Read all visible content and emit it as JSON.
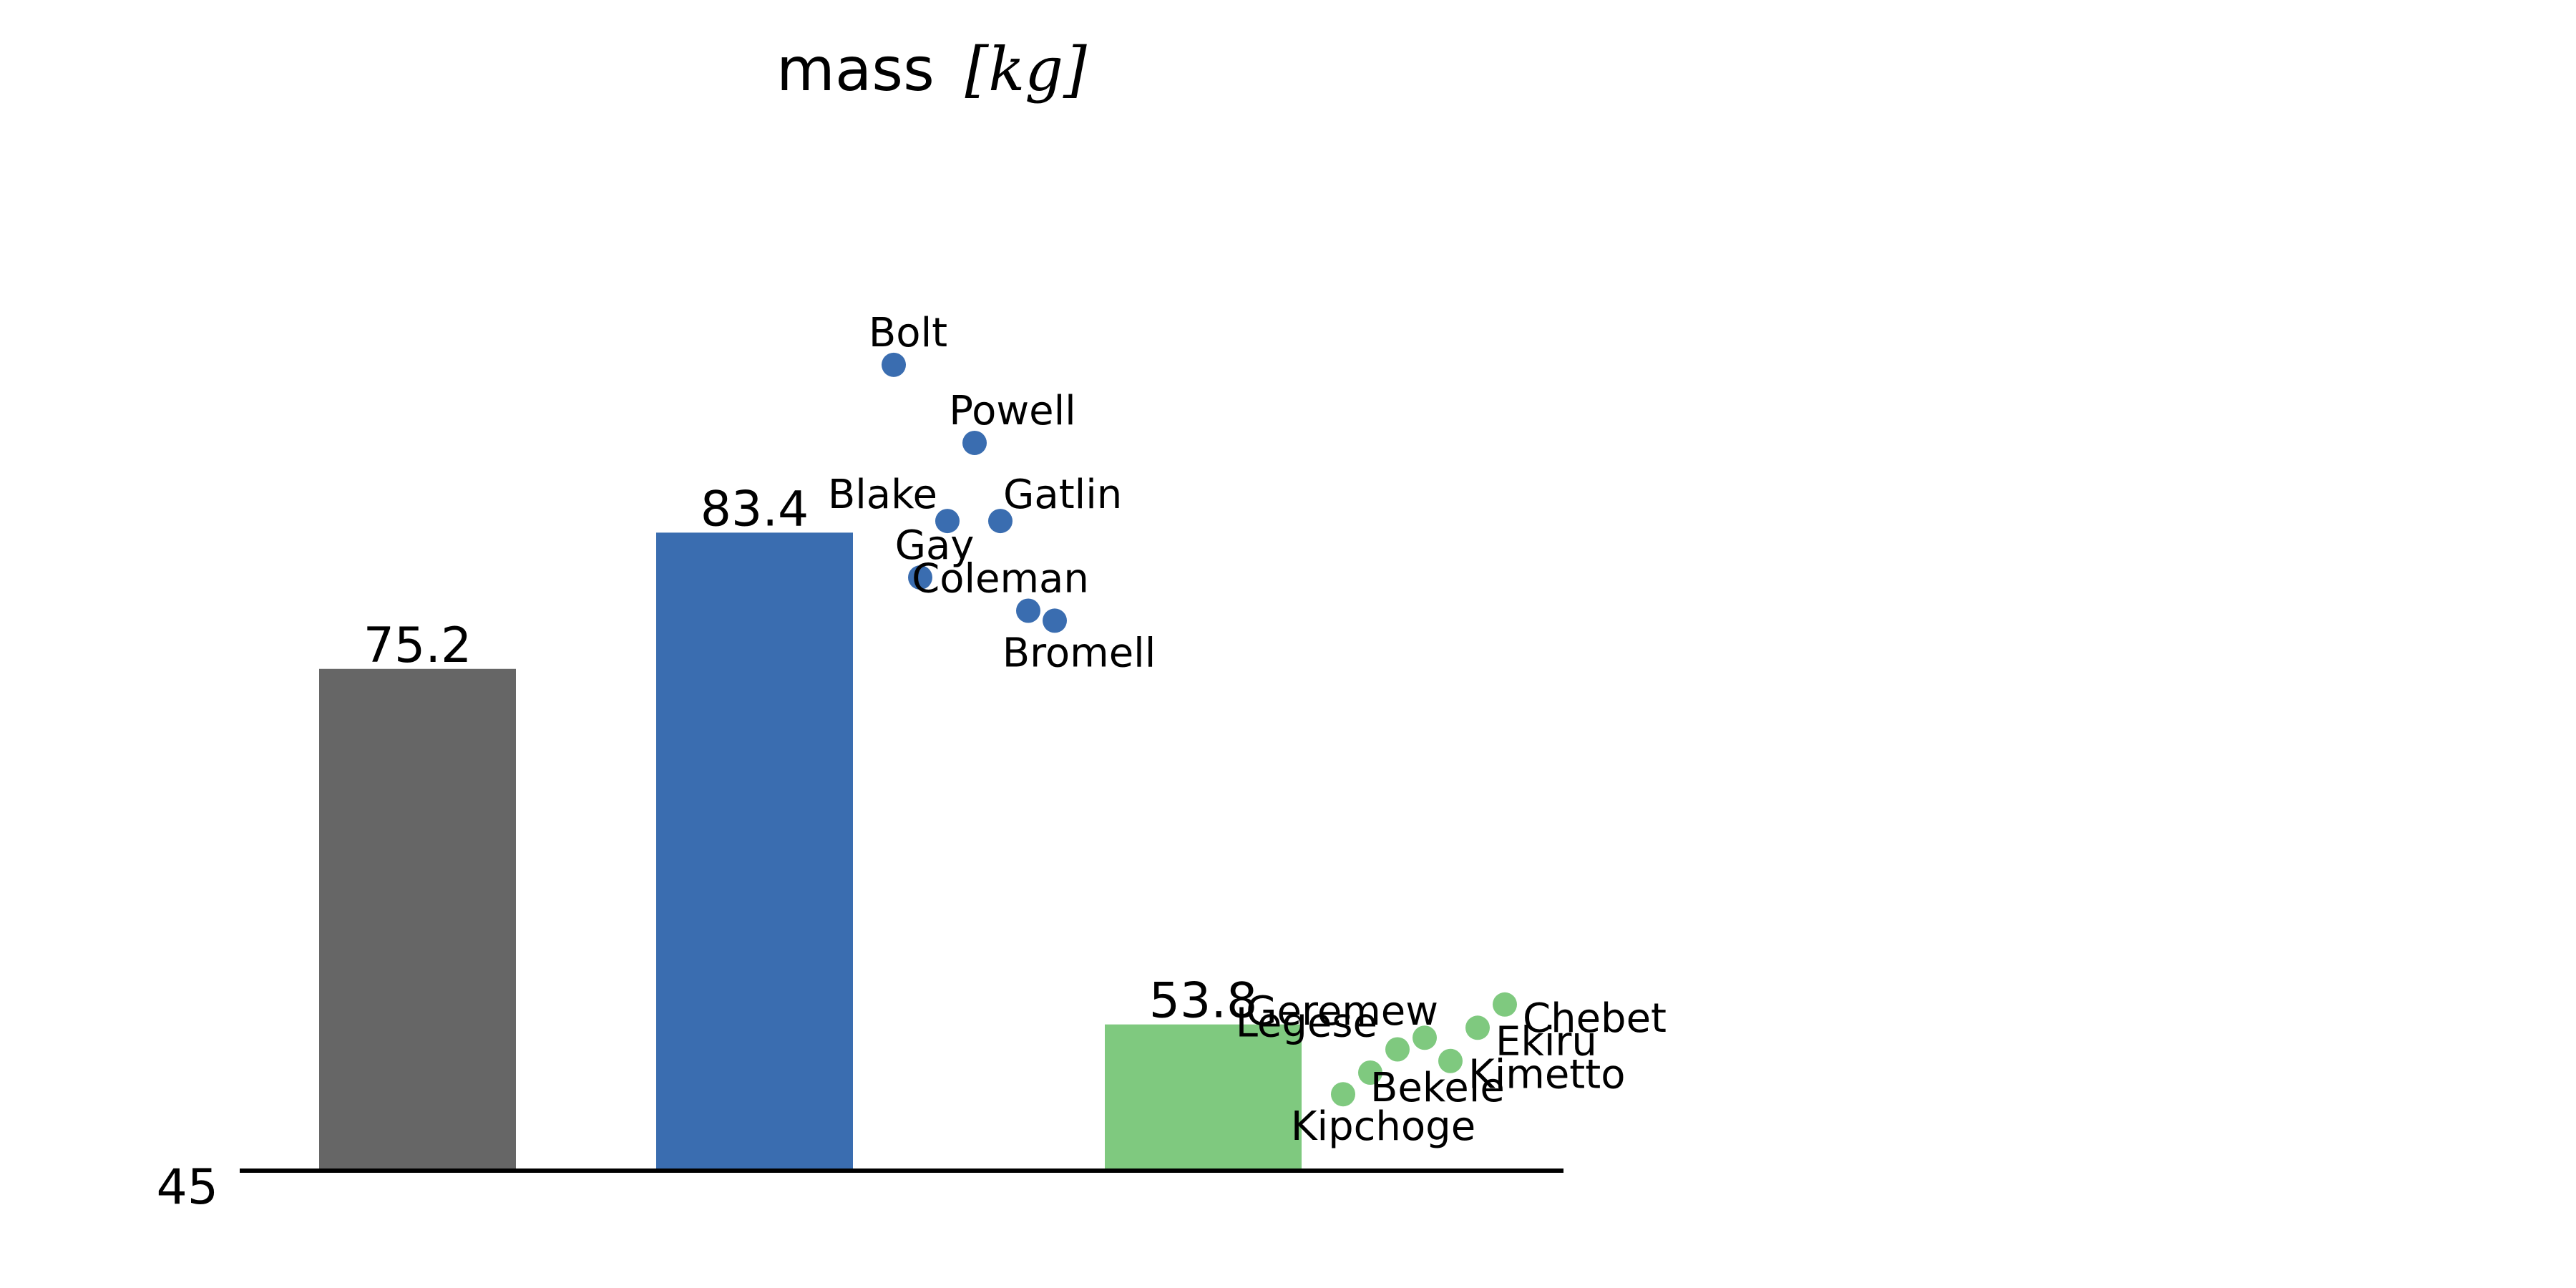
{
  "chart_data": {
    "type": "bar",
    "title": "mass",
    "title_unit": "[kg]",
    "xlabel": "",
    "ylabel": "",
    "ylim": [
      45,
      100
    ],
    "y_ticks": [
      "45"
    ],
    "grid": false,
    "legend": "none",
    "bars": [
      {
        "value": 75.2,
        "label": "75.2",
        "color": "#666666",
        "slot": 0
      },
      {
        "value": 83.4,
        "label": "83.4",
        "color": "#3a6db0",
        "slot": 1
      },
      {
        "value": 53.8,
        "label": "53.8",
        "color": "#7fc97f",
        "slot": 2
      }
    ],
    "points": [
      {
        "name": "Bolt",
        "value": 93.5,
        "group": 1,
        "color": "#3a6db0"
      },
      {
        "name": "Powell",
        "value": 88.8,
        "group": 1,
        "color": "#3a6db0"
      },
      {
        "name": "Blake",
        "value": 84.1,
        "group": 1,
        "color": "#3a6db0"
      },
      {
        "name": "Gatlin",
        "value": 84.1,
        "group": 1,
        "color": "#3a6db0"
      },
      {
        "name": "Gay",
        "value": 80.7,
        "group": 1,
        "color": "#3a6db0"
      },
      {
        "name": "Coleman",
        "value": 78.7,
        "group": 1,
        "color": "#3a6db0"
      },
      {
        "name": "Bromell",
        "value": 78.1,
        "group": 1,
        "color": "#3a6db0"
      },
      {
        "name": "Chebet",
        "value": 55.0,
        "group": 2,
        "color": "#7fc97f"
      },
      {
        "name": "Ekiru",
        "value": 53.6,
        "group": 2,
        "color": "#7fc97f"
      },
      {
        "name": "Geremew",
        "value": 53.0,
        "group": 2,
        "color": "#7fc97f"
      },
      {
        "name": "Legese",
        "value": 52.3,
        "group": 2,
        "color": "#7fc97f"
      },
      {
        "name": "Kimetto",
        "value": 51.6,
        "group": 2,
        "color": "#7fc97f"
      },
      {
        "name": "Bekele",
        "value": 50.9,
        "group": 2,
        "color": "#7fc97f"
      },
      {
        "name": "Kipchoge",
        "value": 49.6,
        "group": 2,
        "color": "#7fc97f"
      }
    ]
  }
}
